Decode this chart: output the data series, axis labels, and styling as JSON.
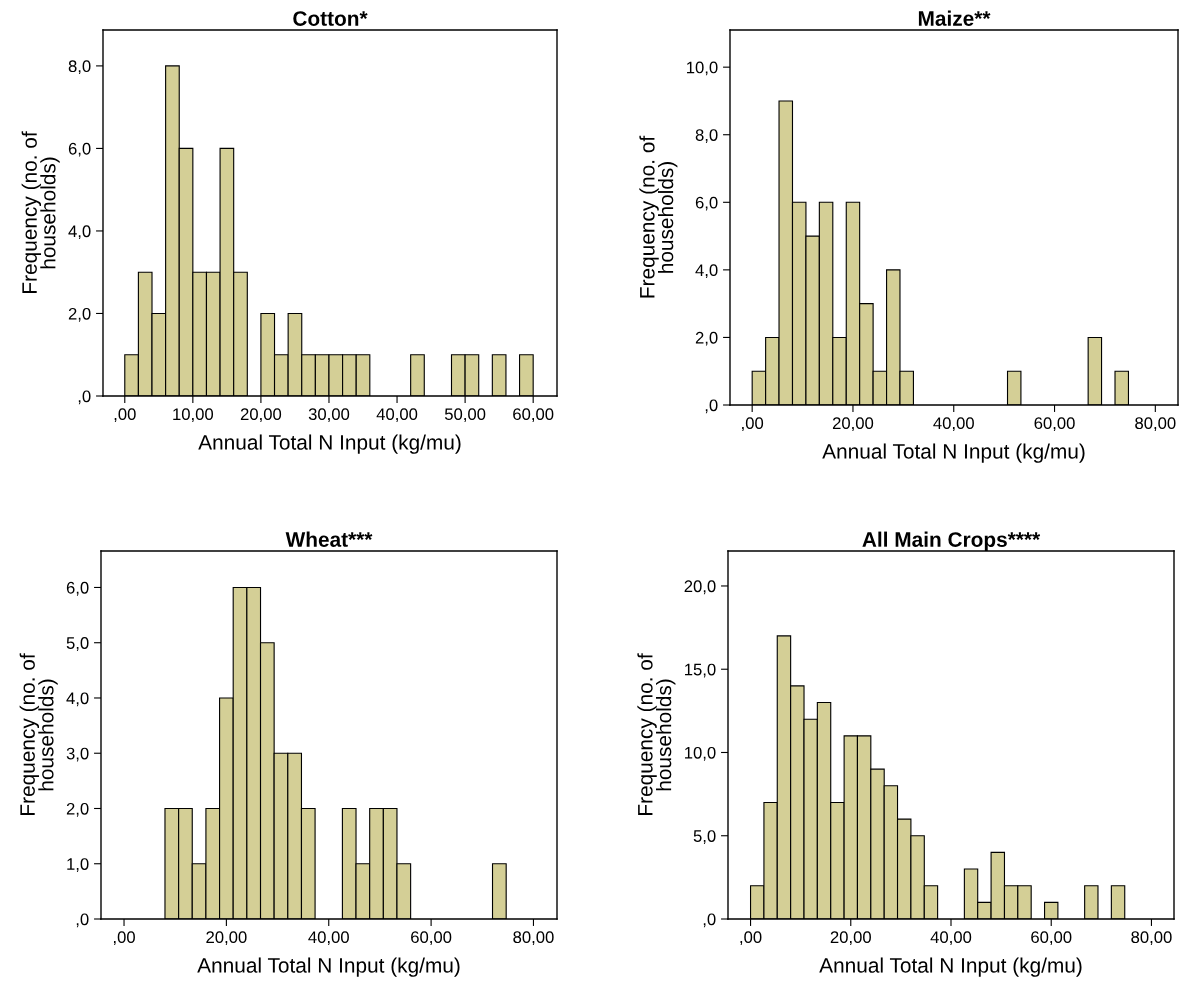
{
  "chart_data": [
    {
      "type": "histogram",
      "title": "Cotton*",
      "xlabel": "Annual Total N Input (kg/mu)",
      "ylabel": "Frequency (no. of\nhouseholds)",
      "color": "#d4cf96",
      "bins": [
        0,
        2,
        4,
        6,
        8,
        10,
        12,
        14,
        16,
        18,
        20,
        22,
        24,
        26,
        28,
        30,
        32,
        34,
        36,
        38,
        40,
        42,
        44,
        46,
        48,
        50,
        52,
        54,
        56,
        58,
        60
      ],
      "values": [
        1,
        3,
        2,
        8,
        6,
        3,
        3,
        6,
        3,
        0,
        2,
        1,
        2,
        1,
        1,
        1,
        1,
        1,
        0,
        0,
        0,
        1,
        0,
        0,
        1,
        1,
        0,
        1,
        0,
        1
      ],
      "xlim": [
        -3.2,
        63.5
      ],
      "xticks": [
        {
          "value": 0,
          "label": ",00"
        },
        {
          "value": 10,
          "label": "10,00"
        },
        {
          "value": 20,
          "label": "20,00"
        },
        {
          "value": 30,
          "label": "30,00"
        },
        {
          "value": 40,
          "label": "40,00"
        },
        {
          "value": 50,
          "label": "50,00"
        },
        {
          "value": 60,
          "label": "60,00"
        }
      ],
      "ylim": [
        0,
        8.87
      ],
      "yticks": [
        {
          "value": 0,
          "label": ",0"
        },
        {
          "value": 2,
          "label": "2,0"
        },
        {
          "value": 4,
          "label": "4,0"
        },
        {
          "value": 6,
          "label": "6,0"
        },
        {
          "value": 8,
          "label": "8,0"
        }
      ]
    },
    {
      "type": "histogram",
      "title": "Maize**",
      "xlabel": "Annual Total N Input (kg/mu)",
      "ylabel": "Frequency (no. of\nhouseholds)",
      "color": "#d4cf96",
      "bins": [
        0,
        2.67,
        5.33,
        8,
        10.67,
        13.33,
        16,
        18.67,
        21.33,
        24,
        26.67,
        29.33,
        32,
        34.67,
        37.33,
        40,
        42.67,
        45.33,
        48,
        50.67,
        53.33,
        56,
        58.67,
        61.33,
        64,
        66.67,
        69.33,
        72,
        74.67
      ],
      "values": [
        1,
        2,
        9,
        6,
        5,
        6,
        2,
        6,
        3,
        1,
        4,
        1,
        0,
        0,
        0,
        0,
        0,
        0,
        0,
        1,
        0,
        0,
        0,
        0,
        0,
        2,
        0,
        1
      ],
      "xlim": [
        -4.4,
        84.5
      ],
      "xticks": [
        {
          "value": 0,
          "label": ",00"
        },
        {
          "value": 20,
          "label": "20,00"
        },
        {
          "value": 40,
          "label": "40,00"
        },
        {
          "value": 60,
          "label": "60,00"
        },
        {
          "value": 80,
          "label": "80,00"
        }
      ],
      "ylim": [
        0,
        11.1
      ],
      "yticks": [
        {
          "value": 0,
          "label": ",0"
        },
        {
          "value": 2,
          "label": "2,0"
        },
        {
          "value": 4,
          "label": "4,0"
        },
        {
          "value": 6,
          "label": "6,0"
        },
        {
          "value": 8,
          "label": "8,0"
        },
        {
          "value": 10,
          "label": "10,0"
        }
      ]
    },
    {
      "type": "histogram",
      "title": "Wheat***",
      "xlabel": "Annual Total N Input (kg/mu)",
      "ylabel": "Frequency (no. of\nhouseholds)",
      "color": "#d4cf96",
      "bins": [
        0,
        2.67,
        5.33,
        8,
        10.67,
        13.33,
        16,
        18.67,
        21.33,
        24,
        26.67,
        29.33,
        32,
        34.67,
        37.33,
        40,
        42.67,
        45.33,
        48,
        50.67,
        53.33,
        56,
        58.67,
        61.33,
        64,
        66.67,
        69.33,
        72,
        74.67
      ],
      "values": [
        0,
        0,
        0,
        2,
        2,
        1,
        2,
        4,
        6,
        6,
        5,
        3,
        3,
        2,
        0,
        0,
        2,
        1,
        2,
        2,
        1,
        0,
        0,
        0,
        0,
        0,
        0,
        1
      ],
      "xlim": [
        -4.5,
        84.6
      ],
      "xticks": [
        {
          "value": 0,
          "label": ",00"
        },
        {
          "value": 20,
          "label": "20,00"
        },
        {
          "value": 40,
          "label": "40,00"
        },
        {
          "value": 60,
          "label": "60,00"
        },
        {
          "value": 80,
          "label": "80,00"
        }
      ],
      "ylim": [
        0,
        6.66
      ],
      "yticks": [
        {
          "value": 0,
          "label": ",0"
        },
        {
          "value": 1,
          "label": "1,0"
        },
        {
          "value": 2,
          "label": "2,0"
        },
        {
          "value": 3,
          "label": "3,0"
        },
        {
          "value": 4,
          "label": "4,0"
        },
        {
          "value": 5,
          "label": "5,0"
        },
        {
          "value": 6,
          "label": "6,0"
        }
      ]
    },
    {
      "type": "histogram",
      "title": "All Main Crops****",
      "xlabel": "Annual Total N Input (kg/mu)",
      "ylabel": "Frequency (no. of\nhouseholds)",
      "color": "#d4cf96",
      "bins": [
        0,
        2.67,
        5.33,
        8,
        10.67,
        13.33,
        16,
        18.67,
        21.33,
        24,
        26.67,
        29.33,
        32,
        34.67,
        37.33,
        40,
        42.67,
        45.33,
        48,
        50.67,
        53.33,
        56,
        58.67,
        61.33,
        64,
        66.67,
        69.33,
        72,
        74.67
      ],
      "values": [
        2,
        7,
        17,
        14,
        12,
        13,
        7,
        11,
        11,
        9,
        8,
        6,
        5,
        2,
        0,
        0,
        3,
        1,
        4,
        2,
        2,
        0,
        1,
        0,
        0,
        2,
        0,
        2
      ],
      "xlim": [
        -4.5,
        84.5
      ],
      "xticks": [
        {
          "value": 0,
          "label": ",00"
        },
        {
          "value": 20,
          "label": "20,00"
        },
        {
          "value": 40,
          "label": "40,00"
        },
        {
          "value": 60,
          "label": "60,00"
        },
        {
          "value": 80,
          "label": "80,00"
        }
      ],
      "ylim": [
        0,
        22.1
      ],
      "yticks": [
        {
          "value": 0,
          "label": ",0"
        },
        {
          "value": 5,
          "label": "5,0"
        },
        {
          "value": 10,
          "label": "10,0"
        },
        {
          "value": 15,
          "label": "15,0"
        },
        {
          "value": 20,
          "label": "20,0"
        }
      ]
    }
  ]
}
